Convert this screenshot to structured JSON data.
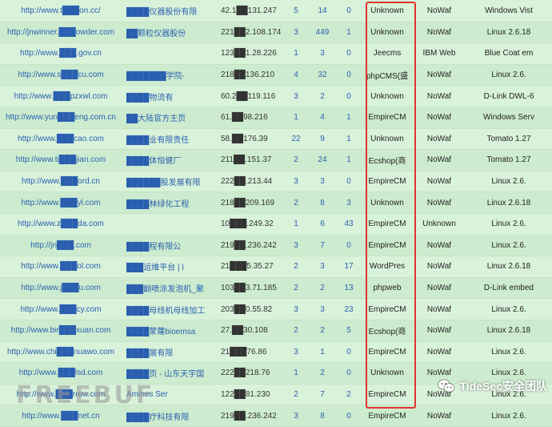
{
  "rows": [
    {
      "url": "http://www.t███on.cc/",
      "name": "████仪器股份有限",
      "ip": "42.1██131.247",
      "n1": "5",
      "n2": "14",
      "n3": "0",
      "cms": "Unknown",
      "waf": "NoWaf",
      "os": "Windows Vist"
    },
    {
      "url": "http://jnwinner.███owder.com",
      "name": "██颗粒仪器股份",
      "ip": "221██2.108.174",
      "n1": "3",
      "n2": "449",
      "n3": "1",
      "cms": "Unknown",
      "waf": "NoWaf",
      "os": "Linux 2.6.18"
    },
    {
      "url": "http://www.███.gov.cn",
      "name": "",
      "ip": "123██1.28.226",
      "n1": "1",
      "n2": "3",
      "n3": "0",
      "cms": "Jeecms",
      "waf": "IBM Web",
      "os": "Blue Coat em"
    },
    {
      "url": "http://www.s███cu.com",
      "name": "███████学院-",
      "ip": "218██136.210",
      "n1": "4",
      "n2": "32",
      "n3": "0",
      "cms": "phpCMS(盛",
      "waf": "NoWaf",
      "os": "Linux 2.6."
    },
    {
      "url": "http://www.███pzxwl.com",
      "name": "████物流有",
      "ip": "60.2██119.116",
      "n1": "3",
      "n2": "2",
      "n3": "0",
      "cms": "Unknown",
      "waf": "NoWaf",
      "os": "D-Link DWL-6"
    },
    {
      "url": "http://www.yun███eng.com.cn",
      "name": "██大陆官方主页",
      "ip": "61.██98.216",
      "n1": "1",
      "n2": "4",
      "n3": "1",
      "cms": "EmpireCM",
      "waf": "NoWaf",
      "os": "Windows Serv"
    },
    {
      "url": "http://www.███cao.com",
      "name": "████业有限责任",
      "ip": "58.██176.39",
      "n1": "22",
      "n2": "9",
      "n3": "1",
      "cms": "Unknown",
      "waf": "NoWaf",
      "os": "Tomato 1.27"
    },
    {
      "url": "http://www.ti███jian.com",
      "name": "████体恒健厂",
      "ip": "211██.151.37",
      "n1": "2",
      "n2": "24",
      "n3": "1",
      "cms": "Ecshop(商",
      "waf": "NoWaf",
      "os": "Tomato 1.27"
    },
    {
      "url": "http://www.███ord.cn",
      "name": "██████股发展有限",
      "ip": "222██.213.44",
      "n1": "3",
      "n2": "3",
      "n3": "0",
      "cms": "EmpireCM",
      "waf": "NoWaf",
      "os": "Linux 2.6."
    },
    {
      "url": "http://www.███yl.com",
      "name": "████林绿化工程",
      "ip": "218██209.169",
      "n1": "2",
      "n2": "8",
      "n3": "3",
      "cms": "Unknown",
      "waf": "NoWaf",
      "os": "Linux 2.6.18"
    },
    {
      "url": "http://www.z███da.com",
      "name": "",
      "ip": "10███.249.32",
      "n1": "1",
      "n2": "6",
      "n3": "43",
      "cms": "EmpireCM",
      "waf": "Unknown",
      "os": "Linux 2.6."
    },
    {
      "url": "http://jn███.com",
      "name": "████程有限公",
      "ip": "219██.236.242",
      "n1": "3",
      "n2": "7",
      "n3": "0",
      "cms": "EmpireCM",
      "waf": "NoWaf",
      "os": "Linux 2.6."
    },
    {
      "url": "http://www.███ol.com",
      "name": "███运维平台 | l",
      "ip": "21███5.35.27",
      "n1": "2",
      "n2": "3",
      "n3": "17",
      "cms": "WordPres",
      "waf": "NoWaf",
      "os": "Linux 2.6.18"
    },
    {
      "url": "http://www.j███u.com",
      "name": "███翻喷涂发泡机_聚",
      "ip": "103██3.71.185",
      "n1": "2",
      "n2": "2",
      "n3": "13",
      "cms": "phpweb",
      "waf": "NoWaf",
      "os": "D-Link embed"
    },
    {
      "url": "http://www.███cy.com",
      "name": "████母线机母线加工",
      "ip": "203██0.55.82",
      "n1": "3",
      "n2": "3",
      "n3": "23",
      "cms": "EmpireCM",
      "waf": "NoWaf",
      "os": "Linux 2.6."
    },
    {
      "url": "http://www.bir███xuan.com",
      "name": "████蒙蘿bioemsa",
      "ip": "27.██30.108",
      "n1": "2",
      "n2": "2",
      "n3": "5",
      "cms": "Ecshop(商",
      "waf": "NoWaf",
      "os": "Linux 2.6.18"
    },
    {
      "url": "http://www.chi███nuawo.com",
      "name": "████展有限",
      "ip": "21███76.86",
      "n1": "3",
      "n2": "1",
      "n3": "0",
      "cms": "EmpireCM",
      "waf": "NoWaf",
      "os": "Linux 2.6."
    },
    {
      "url": "http://www.███lsd.com",
      "name": "████页 - 山东天宇国",
      "ip": "222██218.76",
      "n1": "1",
      "n2": "2",
      "n3": "0",
      "cms": "Unknown",
      "waf": "NoWaf",
      "os": "Linux 2.6."
    },
    {
      "url": "http://www.███rrow.com",
      "name": "Amines Ser",
      "ip": "122██81.230",
      "n1": "2",
      "n2": "7",
      "n3": "2",
      "cms": "EmpireCM",
      "waf": "NoWaf",
      "os": "Linux 2.6."
    },
    {
      "url": "http://www.███net.cn",
      "name": "████疗科技有限",
      "ip": "219██.236.242",
      "n1": "3",
      "n2": "8",
      "n3": "0",
      "cms": "EmpireCM",
      "waf": "NoWaf",
      "os": "Linux 2.6."
    }
  ],
  "watermark": {
    "left_text": "FREEBUF",
    "right_text": "TideSec安全团队"
  },
  "colors": {
    "link": "#2a5fb0",
    "highlight": "#e0332e",
    "row_a": "#d9f2da",
    "row_b": "#cdeccf"
  }
}
